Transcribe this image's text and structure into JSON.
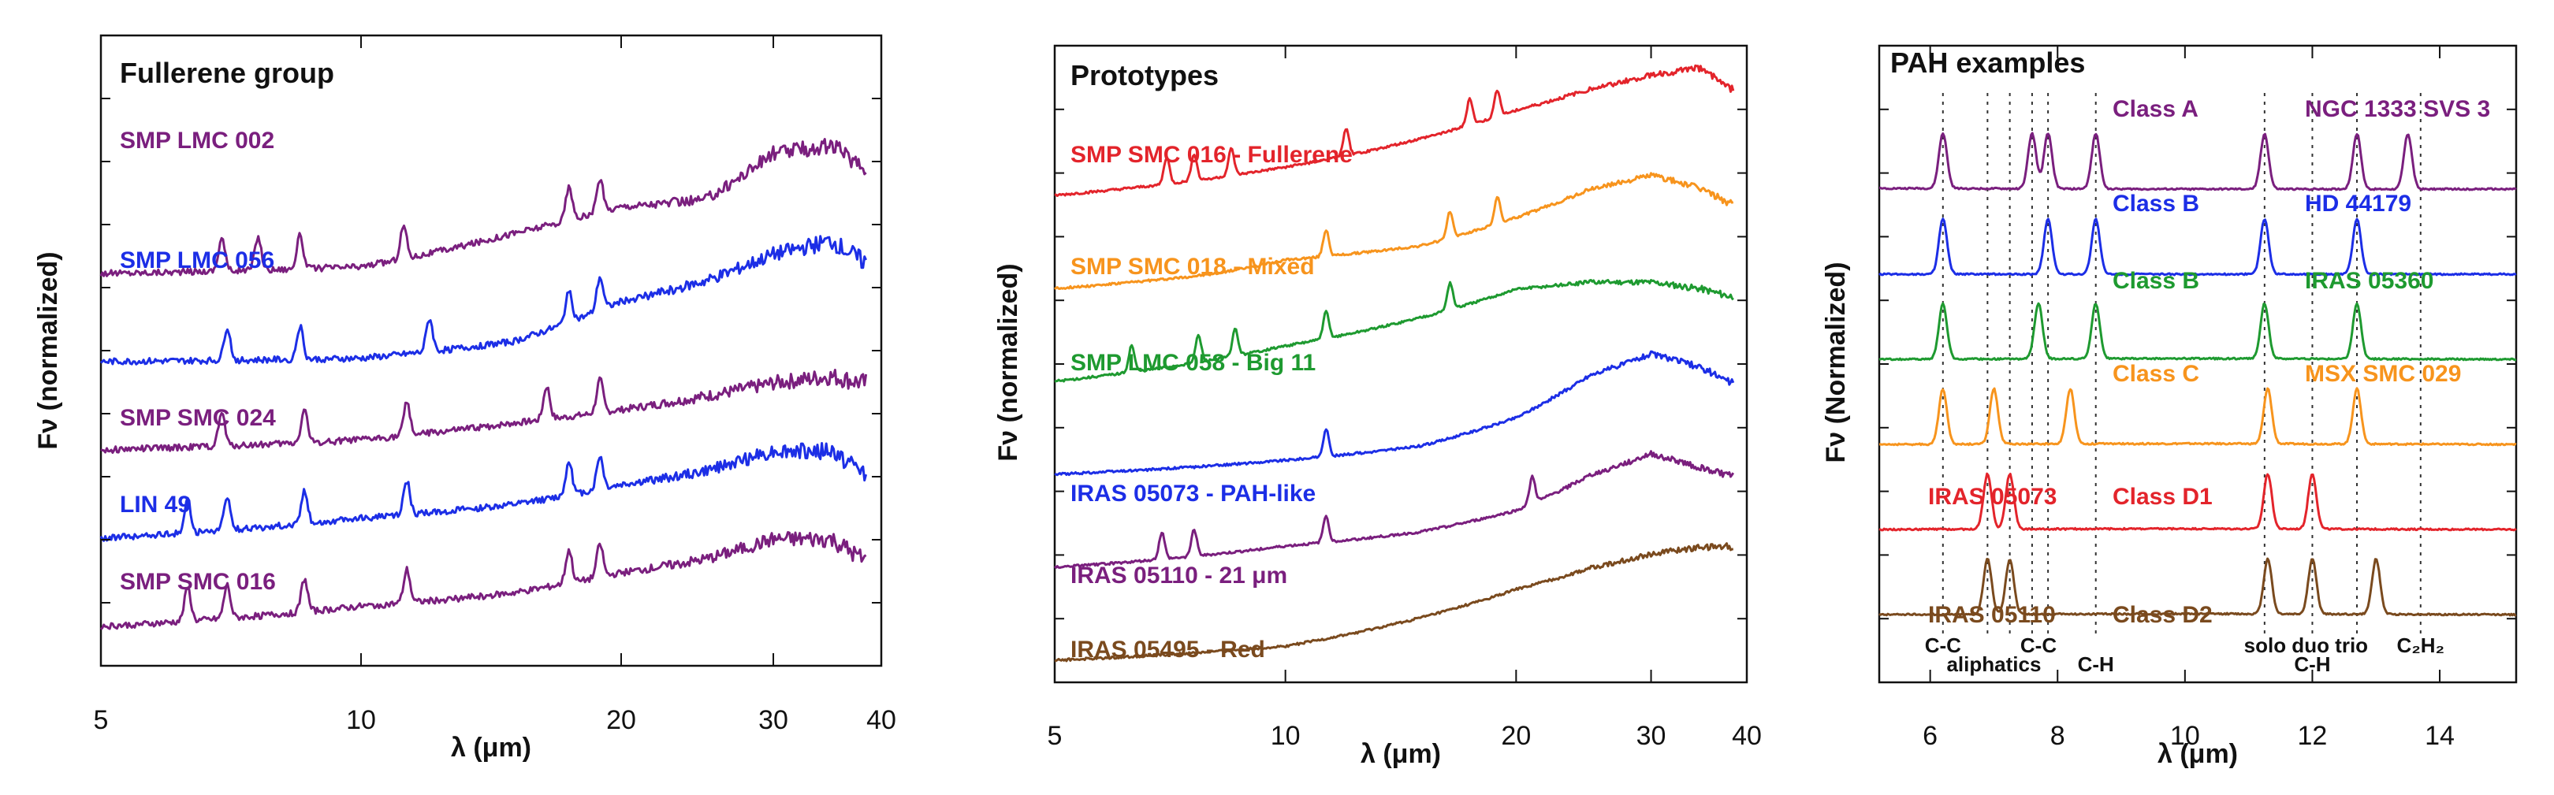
{
  "chart_data": [
    {
      "type": "line",
      "title": "Fullerene group",
      "xlabel": "λ (μm)",
      "ylabel": "Fν (normalized)",
      "x_scale": "log",
      "xlim": [
        5,
        40
      ],
      "xticks": [
        5,
        10,
        20,
        30,
        40
      ],
      "grid": false,
      "series": [
        {
          "name": "SMP LMC 002",
          "color": "#7a1f7e",
          "offset": 4,
          "peaks": [
            6.9,
            7.6,
            8.5,
            11.2,
            17.4,
            18.9
          ],
          "trend": [
            [
              5,
              0.0
            ],
            [
              10,
              0.1
            ],
            [
              15,
              0.6
            ],
            [
              20,
              1.0
            ],
            [
              25,
              1.1
            ],
            [
              30,
              1.8
            ],
            [
              35,
              1.9
            ],
            [
              38,
              1.6
            ]
          ]
        },
        {
          "name": "SMP LMC 056",
          "color": "#1c2ee6",
          "offset": 3,
          "peaks": [
            7.0,
            8.5,
            12.0,
            17.4,
            18.9
          ],
          "trend": [
            [
              5,
              0.0
            ],
            [
              10,
              0.05
            ],
            [
              15,
              0.3
            ],
            [
              20,
              0.9
            ],
            [
              25,
              1.2
            ],
            [
              30,
              1.6
            ],
            [
              35,
              1.8
            ],
            [
              38,
              1.5
            ]
          ]
        },
        {
          "name": "SMP SMC 024",
          "color": "#7a1f7e",
          "offset": 2,
          "peaks": [
            6.9,
            8.6,
            11.3,
            16.4,
            18.9
          ],
          "trend": [
            [
              5,
              0.0
            ],
            [
              10,
              0.15
            ],
            [
              15,
              0.4
            ],
            [
              20,
              0.6
            ],
            [
              25,
              0.8
            ],
            [
              30,
              1.0
            ],
            [
              35,
              1.1
            ],
            [
              38,
              1.0
            ]
          ]
        },
        {
          "name": "LIN 49",
          "color": "#1c2ee6",
          "offset": 1,
          "peaks": [
            6.3,
            7.0,
            8.6,
            11.3,
            17.4,
            18.9
          ],
          "trend": [
            [
              5,
              0.0
            ],
            [
              10,
              0.3
            ],
            [
              15,
              0.5
            ],
            [
              20,
              0.8
            ],
            [
              25,
              1.0
            ],
            [
              30,
              1.3
            ],
            [
              35,
              1.3
            ],
            [
              38,
              1.0
            ]
          ]
        },
        {
          "name": "SMP SMC 016",
          "color": "#7a1f7e",
          "offset": 0,
          "peaks": [
            6.3,
            7.0,
            8.6,
            11.3,
            17.4,
            18.9
          ],
          "trend": [
            [
              5,
              0.0
            ],
            [
              10,
              0.3
            ],
            [
              15,
              0.5
            ],
            [
              20,
              0.8
            ],
            [
              25,
              1.0
            ],
            [
              30,
              1.3
            ],
            [
              35,
              1.3
            ],
            [
              38,
              1.0
            ]
          ]
        }
      ]
    },
    {
      "type": "line",
      "title": "Prototypes",
      "xlabel": "λ (μm)",
      "ylabel": "Fν (normalized)",
      "x_scale": "log",
      "xlim": [
        5,
        40
      ],
      "xticks": [
        5,
        10,
        20,
        30,
        40
      ],
      "grid": false,
      "series": [
        {
          "name": "SMP SMC 016 - Fullerene",
          "color": "#e3242b",
          "offset": 5,
          "peaks": [
            7.0,
            7.6,
            8.5,
            12.0,
            17.4,
            18.9
          ],
          "trend": [
            [
              5,
              0.0
            ],
            [
              10,
              0.4
            ],
            [
              15,
              0.8
            ],
            [
              20,
              1.2
            ],
            [
              25,
              1.5
            ],
            [
              30,
              1.7
            ],
            [
              35,
              1.8
            ],
            [
              38,
              1.5
            ]
          ]
        },
        {
          "name": "SMP SMC 018 - Mixed",
          "color": "#f7941d",
          "offset": 4,
          "peaks": [
            11.3,
            16.4,
            18.9
          ],
          "trend": [
            [
              5,
              0.0
            ],
            [
              8,
              0.2
            ],
            [
              10,
              0.4
            ],
            [
              15,
              0.6
            ],
            [
              20,
              1.0
            ],
            [
              25,
              1.4
            ],
            [
              30,
              1.6
            ],
            [
              35,
              1.4
            ],
            [
              38,
              1.2
            ]
          ]
        },
        {
          "name": "SMP LMC 058 - Big 11",
          "color": "#1e9a30",
          "offset": 3,
          "peaks": [
            6.3,
            7.7,
            8.6,
            11.3,
            16.4
          ],
          "trend": [
            [
              5,
              0.0
            ],
            [
              8,
              0.3
            ],
            [
              10,
              0.5
            ],
            [
              15,
              0.9
            ],
            [
              20,
              1.3
            ],
            [
              25,
              1.4
            ],
            [
              30,
              1.4
            ],
            [
              35,
              1.3
            ],
            [
              38,
              1.2
            ]
          ]
        },
        {
          "name": "IRAS 05073 - PAH-like",
          "color": "#1c2ee6",
          "offset": 2,
          "peaks": [
            11.3
          ],
          "trend": [
            [
              5,
              0.0
            ],
            [
              10,
              0.2
            ],
            [
              15,
              0.4
            ],
            [
              20,
              0.8
            ],
            [
              25,
              1.4
            ],
            [
              30,
              1.7
            ],
            [
              35,
              1.5
            ],
            [
              38,
              1.3
            ]
          ]
        },
        {
          "name": "IRAS 05110 - 21 μm",
          "color": "#7a1f7e",
          "offset": 1,
          "peaks": [
            6.9,
            7.6,
            11.3,
            21.0
          ],
          "trend": [
            [
              5,
              0.0
            ],
            [
              10,
              0.3
            ],
            [
              15,
              0.5
            ],
            [
              20,
              0.8
            ],
            [
              25,
              1.3
            ],
            [
              30,
              1.6
            ],
            [
              35,
              1.4
            ],
            [
              38,
              1.3
            ]
          ]
        },
        {
          "name": "IRAS 05495 - Red",
          "color": "#7a4a1e",
          "offset": 0,
          "peaks": [],
          "trend": [
            [
              5,
              0.0
            ],
            [
              10,
              0.2
            ],
            [
              15,
              0.6
            ],
            [
              20,
              1.0
            ],
            [
              25,
              1.3
            ],
            [
              30,
              1.5
            ],
            [
              35,
              1.6
            ],
            [
              38,
              1.6
            ]
          ]
        }
      ]
    },
    {
      "type": "line",
      "title": "PAH examples",
      "xlabel": "λ (μm)",
      "ylabel": "Fν (Normalized)",
      "x_scale": "linear",
      "xlim": [
        5.2,
        15.2
      ],
      "xticks": [
        6,
        8,
        10,
        12,
        14
      ],
      "grid": false,
      "vlines": [
        6.2,
        6.9,
        7.25,
        7.6,
        7.85,
        8.6,
        11.25,
        12.0,
        12.7,
        13.7
      ],
      "band_labels": [
        {
          "text": "C-C",
          "x": 6.2,
          "row": 1
        },
        {
          "text": "aliphatics",
          "x": 7.0,
          "row": 2
        },
        {
          "text": "C-C",
          "x": 7.7,
          "row": 1
        },
        {
          "text": "C-H",
          "x": 8.6,
          "row": 2
        },
        {
          "text": "solo duo trio",
          "x": 11.9,
          "row": 1
        },
        {
          "text": "C-H",
          "x": 12.0,
          "row": 2
        },
        {
          "text": "C₂H₂",
          "x": 13.7,
          "row": 1
        }
      ],
      "series": [
        {
          "name": "Class A",
          "object": "NGC 1333 SVS 3",
          "color": "#7a1f7e",
          "offset": 5,
          "peaks": [
            6.2,
            7.6,
            7.85,
            8.6,
            11.25,
            12.7,
            13.5
          ],
          "trend": [
            [
              5.2,
              0.1
            ],
            [
              10,
              0.0
            ],
            [
              15.2,
              0.0
            ]
          ]
        },
        {
          "name": "Class B",
          "object": "HD 44179",
          "color": "#1c2ee6",
          "offset": 4,
          "peaks": [
            6.2,
            7.85,
            8.6,
            11.25,
            12.7
          ],
          "trend": [
            [
              5.2,
              0.0
            ],
            [
              10,
              0.0
            ],
            [
              15.2,
              0.0
            ]
          ]
        },
        {
          "name": "Class B",
          "object": "IRAS 05360",
          "color": "#1e9a30",
          "offset": 3,
          "peaks": [
            6.2,
            7.7,
            8.6,
            11.25,
            12.7
          ],
          "trend": [
            [
              5.2,
              0.0
            ],
            [
              10,
              0.1
            ],
            [
              15.2,
              0.0
            ]
          ]
        },
        {
          "name": "Class C",
          "object": "MSX SMC 029",
          "color": "#f7941d",
          "offset": 2,
          "peaks": [
            6.2,
            7.0,
            8.2,
            11.3,
            12.7
          ],
          "trend": [
            [
              5.2,
              0.0
            ],
            [
              10,
              0.1
            ],
            [
              15.2,
              0.0
            ]
          ]
        },
        {
          "name": "Class D1",
          "object": "IRAS 05073",
          "color": "#e3242b",
          "offset": 1,
          "peaks": [
            6.9,
            7.25,
            11.3,
            12.0
          ],
          "trend": [
            [
              5.2,
              0.0
            ],
            [
              10,
              0.1
            ],
            [
              15.2,
              0.0
            ]
          ]
        },
        {
          "name": "Class D2",
          "object": "IRAS 05110",
          "color": "#7a4a1e",
          "offset": 0,
          "peaks": [
            6.9,
            7.25,
            11.3,
            12.0,
            13.0
          ],
          "trend": [
            [
              5.2,
              0.0
            ],
            [
              10,
              0.1
            ],
            [
              15.2,
              0.0
            ]
          ]
        }
      ]
    }
  ]
}
